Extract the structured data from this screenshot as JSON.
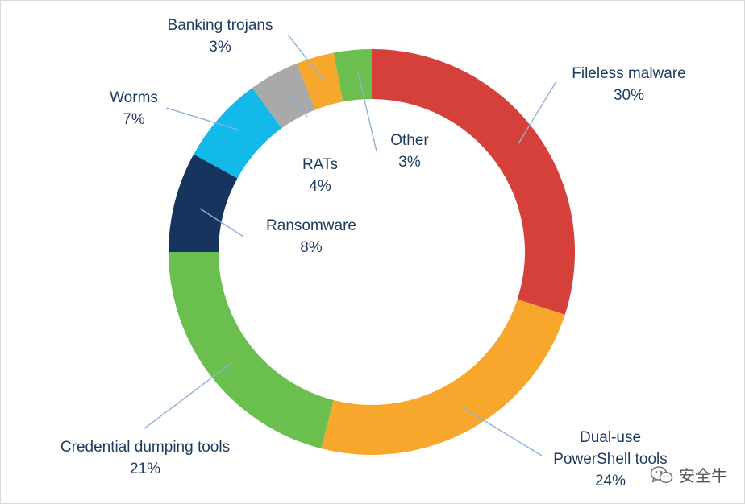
{
  "chart_data": {
    "type": "pie",
    "title": "",
    "categories": [
      "Fileless malware",
      "Dual-use PowerShell tools",
      "Credential dumping tools",
      "Ransomware",
      "Worms",
      "RATs",
      "Banking trojans",
      "Other"
    ],
    "values": [
      30,
      24,
      21,
      8,
      7,
      4,
      3,
      3
    ],
    "value_labels": [
      "30%",
      "24%",
      "21%",
      "8%",
      "7%",
      "4%",
      "3%",
      "3%"
    ],
    "colors": [
      "#d5403a",
      "#f7a72c",
      "#6bbf4e",
      "#16345e",
      "#12b9e9",
      "#a9a9a9",
      "#f7a72c",
      "#6bbf4e"
    ],
    "label_lines": {
      "Dual-use PowerShell tools": [
        "Dual-use",
        "PowerShell tools"
      ]
    },
    "legend": "none",
    "donut": true,
    "start_angle": "top",
    "direction": "clockwise"
  },
  "watermark": {
    "text": "安全牛",
    "icon": "wechat-icon"
  }
}
